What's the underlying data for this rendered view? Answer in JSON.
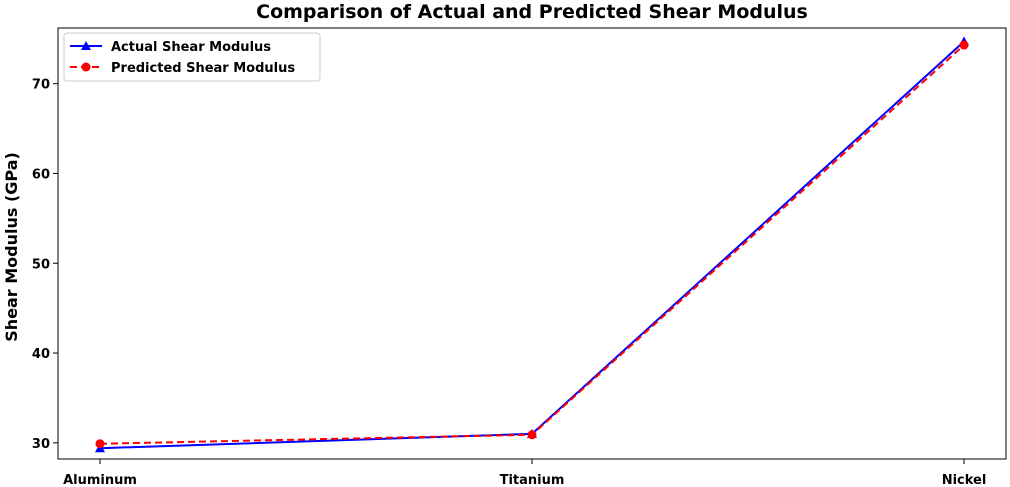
{
  "chart_data": {
    "type": "line",
    "title": "Comparison of Actual and Predicted Shear Modulus",
    "xlabel": "",
    "ylabel": "Shear Modulus (GPa)",
    "categories": [
      "Aluminum",
      "Titanium",
      "Nickel"
    ],
    "ylim": [
      28.2,
      76.2
    ],
    "yticks": [
      30,
      40,
      50,
      60,
      70
    ],
    "grid": false,
    "legend_position": "top-left",
    "series": [
      {
        "name": "Actual Shear Modulus",
        "values": [
          29.4,
          31.0,
          74.7
        ],
        "color": "#0000ff",
        "marker": "triangle",
        "line_style": "solid"
      },
      {
        "name": "Predicted Shear Modulus",
        "values": [
          29.9,
          30.9,
          74.3
        ],
        "color": "#ff0000",
        "marker": "circle",
        "line_style": "dashed"
      }
    ]
  }
}
